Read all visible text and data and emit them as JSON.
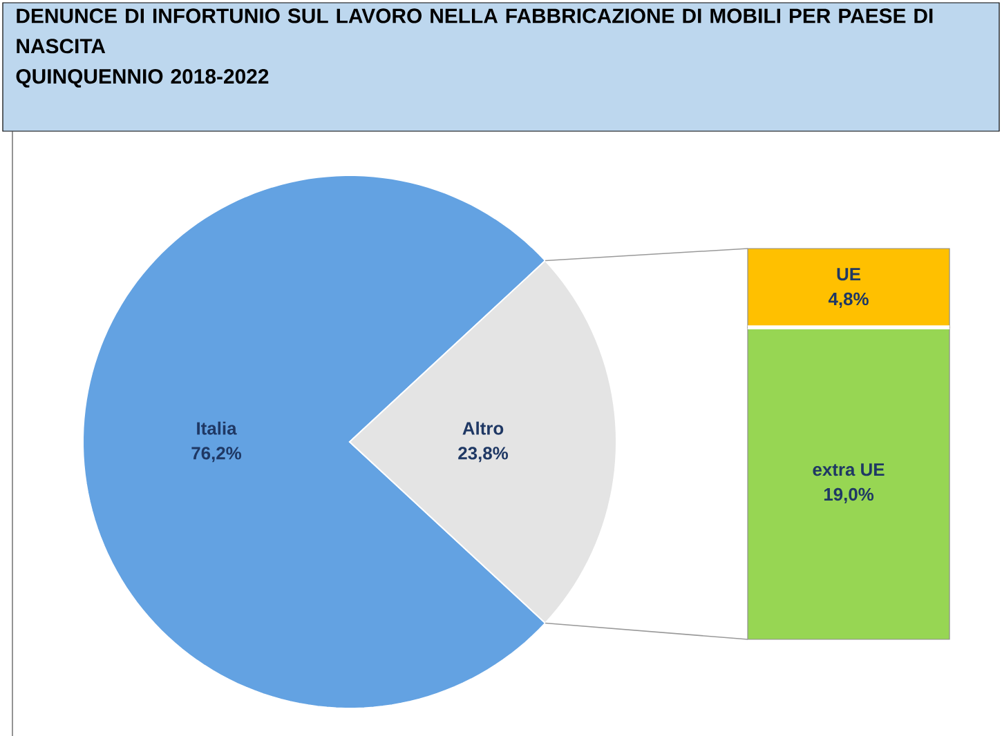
{
  "chart_data": [
    {
      "type": "pie",
      "title": "DENUNCE DI INFORTUNIO SUL LAVORO NELLA FABBRICAZIONE DI MOBILI PER PAESE DI NASCITA",
      "subtitle": "QUINQUENNIO 2018-2022",
      "categories": [
        "Italia",
        "Altro"
      ],
      "values": [
        76.2,
        23.8
      ],
      "colors": [
        "#63a2e2",
        "#e4e4e4"
      ],
      "value_labels": [
        "76,2%",
        "23,8%"
      ]
    },
    {
      "type": "bar",
      "stacked": true,
      "categories": [
        null
      ],
      "series": [
        {
          "name": "extra UE",
          "color": "#97d653",
          "values": [
            19.0
          ],
          "value_labels": [
            "19,0%"
          ]
        },
        {
          "name": "UE",
          "color": "#ffc000",
          "values": [
            4.8
          ],
          "value_labels": [
            "4,8%"
          ]
        }
      ]
    }
  ]
}
